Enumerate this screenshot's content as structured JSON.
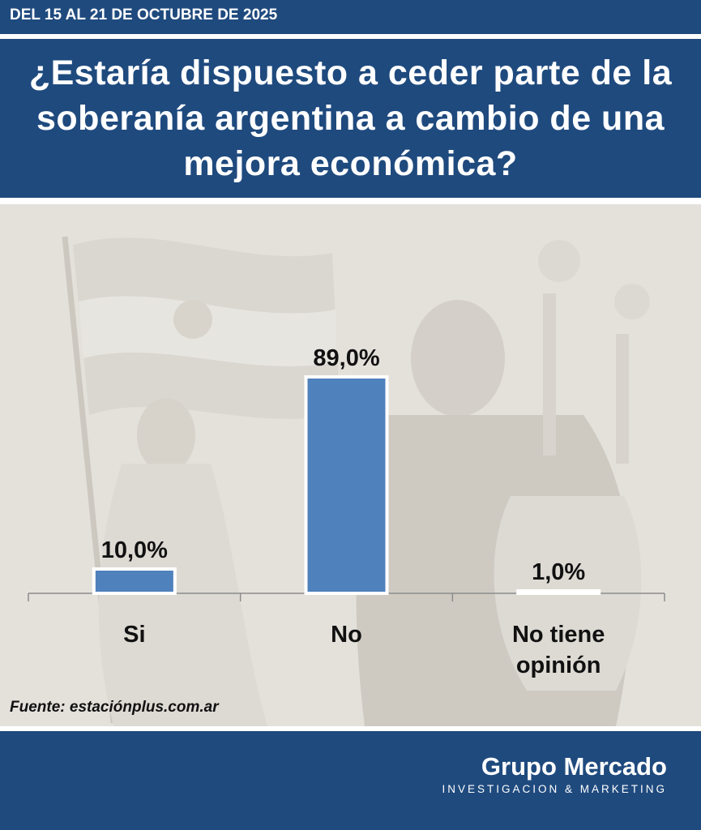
{
  "header": {
    "date_range": "DEL 15 AL 21 DE OCTUBRE DE 2025",
    "title": "¿Estaría dispuesto a ceder parte de la soberanía argentina a cambio de una mejora económica?"
  },
  "source": "Fuente: estaciónplus.com.ar",
  "footer": {
    "brand": "Grupo Mercado",
    "tagline": "INVESTIGACION & MARKETING"
  },
  "colors": {
    "navy": "#1f4a7e",
    "bar": "#4f81bd",
    "background": "#e4e1db"
  },
  "chart_data": {
    "type": "bar",
    "categories": [
      "Si",
      "No",
      "No tiene opinión"
    ],
    "values": [
      10.0,
      89.0,
      1.0
    ],
    "value_labels": [
      "10,0%",
      "89,0%",
      "1,0%"
    ],
    "ylim": [
      0,
      100
    ],
    "grid": false,
    "legend": "none"
  }
}
